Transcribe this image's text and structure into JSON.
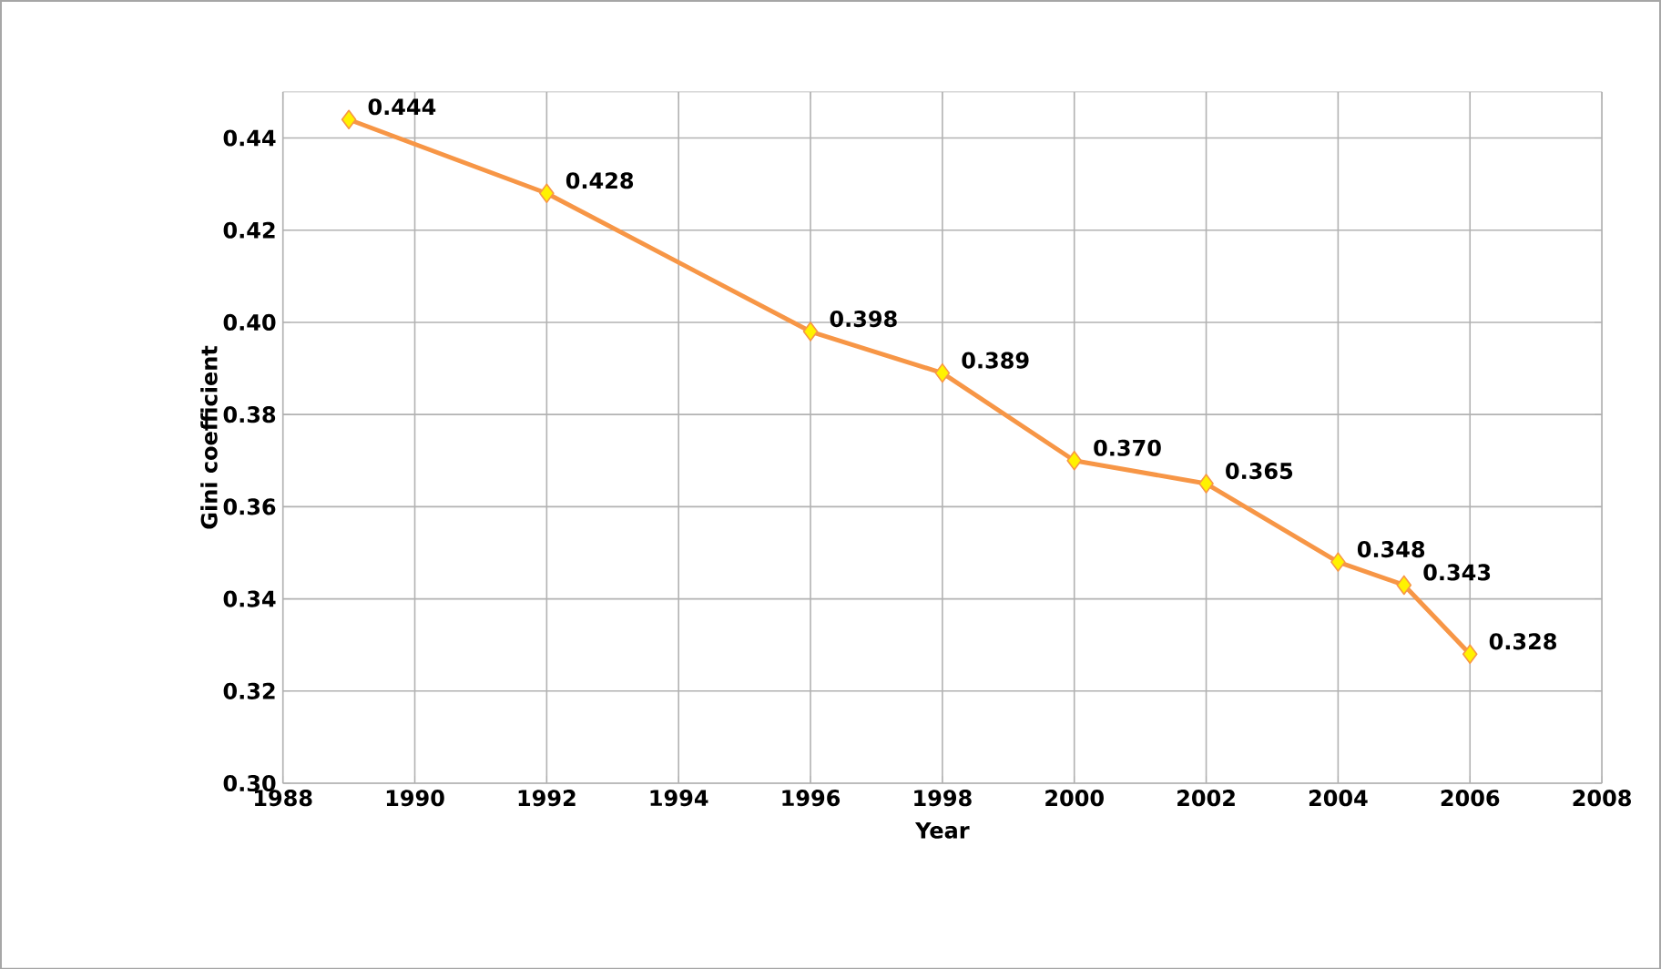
{
  "chart_data": {
    "type": "line",
    "xlabel": "Year",
    "ylabel": "Gini coefficient",
    "x": [
      1989,
      1992,
      1996,
      1998,
      2000,
      2002,
      2004,
      2005,
      2006
    ],
    "series": [
      {
        "color": "#f79646",
        "values": [
          0.444,
          0.428,
          0.398,
          0.389,
          0.37,
          0.365,
          0.348,
          0.343,
          0.328
        ],
        "value_labels": [
          "0.444",
          "0.428",
          "0.398",
          "0.389",
          "0.370",
          "0.365",
          "0.348",
          "0.343",
          "0.328"
        ]
      }
    ],
    "xlim": [
      1988,
      2008
    ],
    "xticks": [
      1988,
      1990,
      1992,
      1994,
      1996,
      1998,
      2000,
      2002,
      2004,
      2006,
      2008
    ],
    "ylim": [
      0.3,
      0.45
    ],
    "yticks": [
      {
        "value": 0.3,
        "label": "0.30"
      },
      {
        "value": 0.32,
        "label": "0.32"
      },
      {
        "value": 0.34,
        "label": "0.34"
      },
      {
        "value": 0.36,
        "label": "0.36"
      },
      {
        "value": 0.38,
        "label": "0.38"
      },
      {
        "value": 0.4,
        "label": "0.40"
      },
      {
        "value": 0.42,
        "label": "0.42"
      },
      {
        "value": 0.44,
        "label": "0.44"
      }
    ],
    "grid": true,
    "marker": "diamond",
    "line_style": "solid"
  }
}
